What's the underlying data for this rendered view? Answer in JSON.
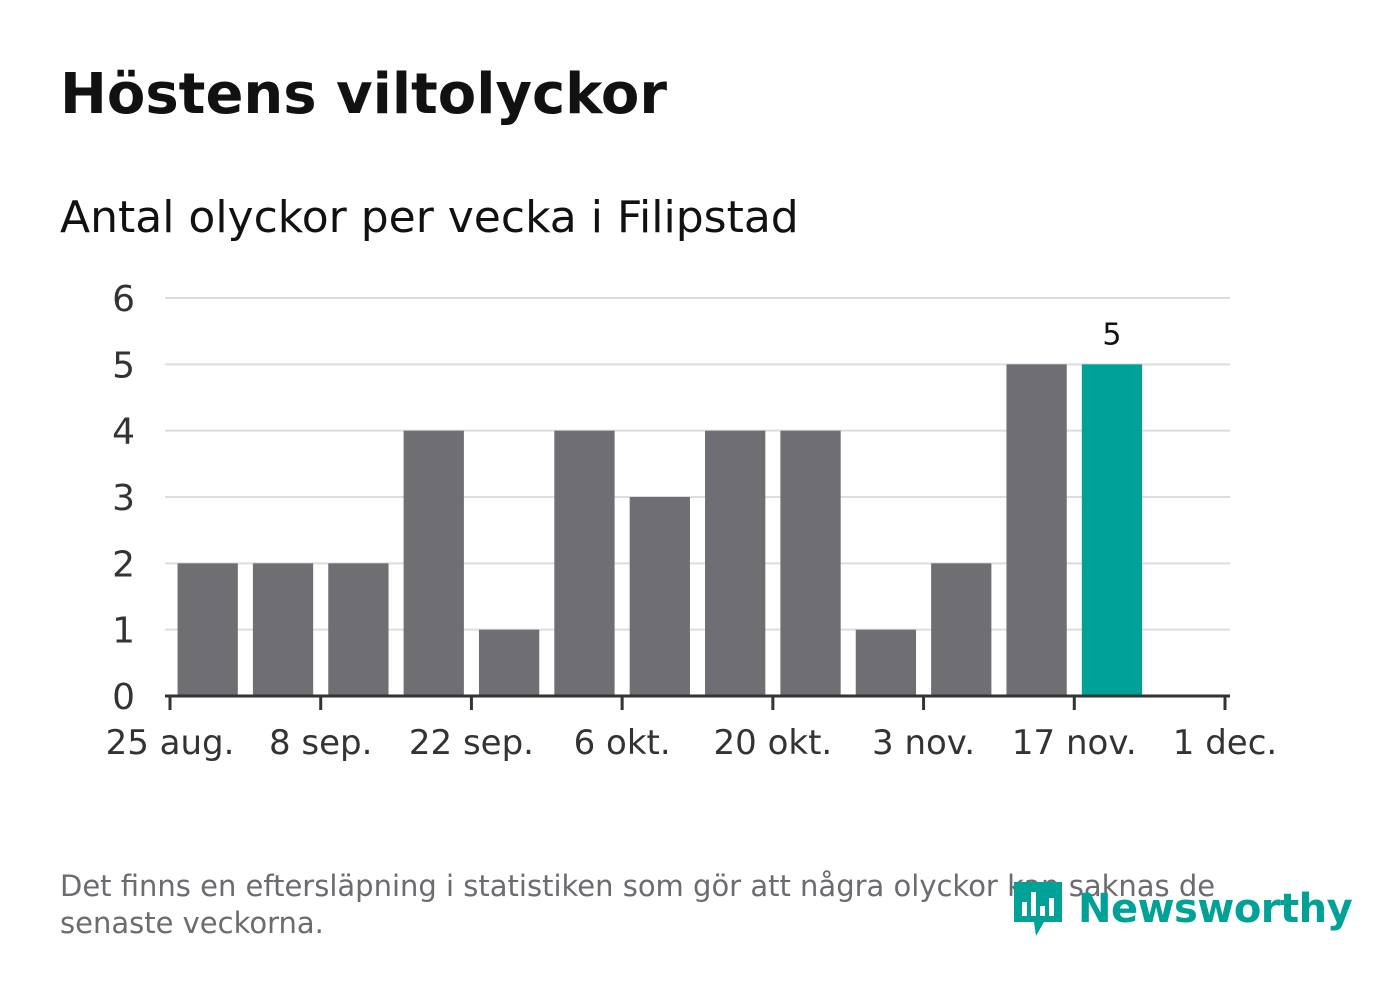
{
  "title": "Höstens viltolyckor",
  "subtitle": "Antal olyckor per vecka i Filipstad",
  "footnote": "Det finns en eftersläpning i statistiken som gör att några olyckor kan saknas de senaste veckorna.",
  "brand": {
    "name": "Newsworthy",
    "color": "#00a298",
    "icon": "newsworthy-logo-icon"
  },
  "colors": {
    "bar": "#6f6e73",
    "highlight": "#00a298",
    "grid": "#dddddd",
    "axis": "#333333"
  },
  "chart_data": {
    "type": "bar",
    "x": [
      "2019-09-01",
      "2019-09-08",
      "2019-09-15",
      "2019-09-22",
      "2019-09-29",
      "2019-10-06",
      "2019-10-13",
      "2019-10-20",
      "2019-10-27",
      "2019-11-03",
      "2019-11-10",
      "2019-11-17",
      "2019-11-24"
    ],
    "values": [
      2,
      2,
      2,
      4,
      1,
      4,
      3,
      4,
      4,
      1,
      2,
      5,
      5
    ],
    "highlight_index": 12,
    "data_labels": [
      {
        "index": 12,
        "text": "5"
      }
    ],
    "ylim": [
      0,
      6
    ],
    "y_ticks": [
      0,
      1,
      2,
      3,
      4,
      5,
      6
    ],
    "x_ticks": [
      {
        "date": "2019-08-25",
        "label": "25 aug."
      },
      {
        "date": "2019-09-08",
        "label": "8 sep."
      },
      {
        "date": "2019-09-22",
        "label": "22 sep."
      },
      {
        "date": "2019-10-06",
        "label": "6 okt."
      },
      {
        "date": "2019-10-20",
        "label": "20 okt."
      },
      {
        "date": "2019-11-03",
        "label": "3 nov."
      },
      {
        "date": "2019-11-17",
        "label": "17 nov."
      },
      {
        "date": "2019-12-01",
        "label": "1 dec."
      }
    ],
    "xlim": [
      "2019-08-25",
      "2019-12-01"
    ],
    "grid": true,
    "xlabel": "",
    "ylabel": ""
  }
}
